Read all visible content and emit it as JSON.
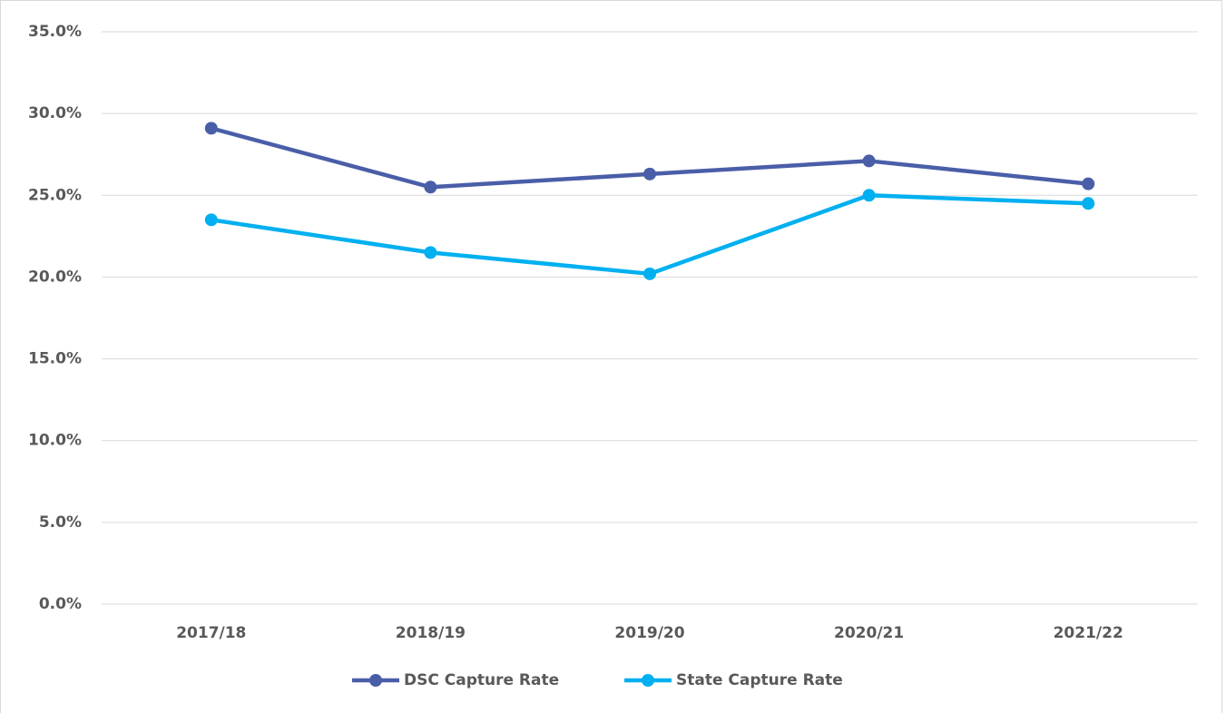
{
  "chart_data": {
    "type": "line",
    "categories": [
      "2017/18",
      "2018/19",
      "2019/20",
      "2020/21",
      "2021/22"
    ],
    "series": [
      {
        "name": "DSC Capture Rate",
        "color": "#4a5ea8",
        "values": [
          29.1,
          25.5,
          26.3,
          27.1,
          25.7
        ]
      },
      {
        "name": "State Capture Rate",
        "color": "#00b0f0",
        "values": [
          23.5,
          21.5,
          20.2,
          25.0,
          24.5
        ]
      }
    ],
    "ylim": [
      0,
      35
    ],
    "yticks": [
      {
        "value": 0,
        "label": "0.0%"
      },
      {
        "value": 5,
        "label": "5.0%"
      },
      {
        "value": 10,
        "label": "10.0%"
      },
      {
        "value": 15,
        "label": "15.0%"
      },
      {
        "value": 20,
        "label": "20.0%"
      },
      {
        "value": 25,
        "label": "25.0%"
      },
      {
        "value": 30,
        "label": "30.0%"
      },
      {
        "value": 35,
        "label": "35.0%"
      }
    ],
    "grid": true,
    "legend": "bottom"
  }
}
